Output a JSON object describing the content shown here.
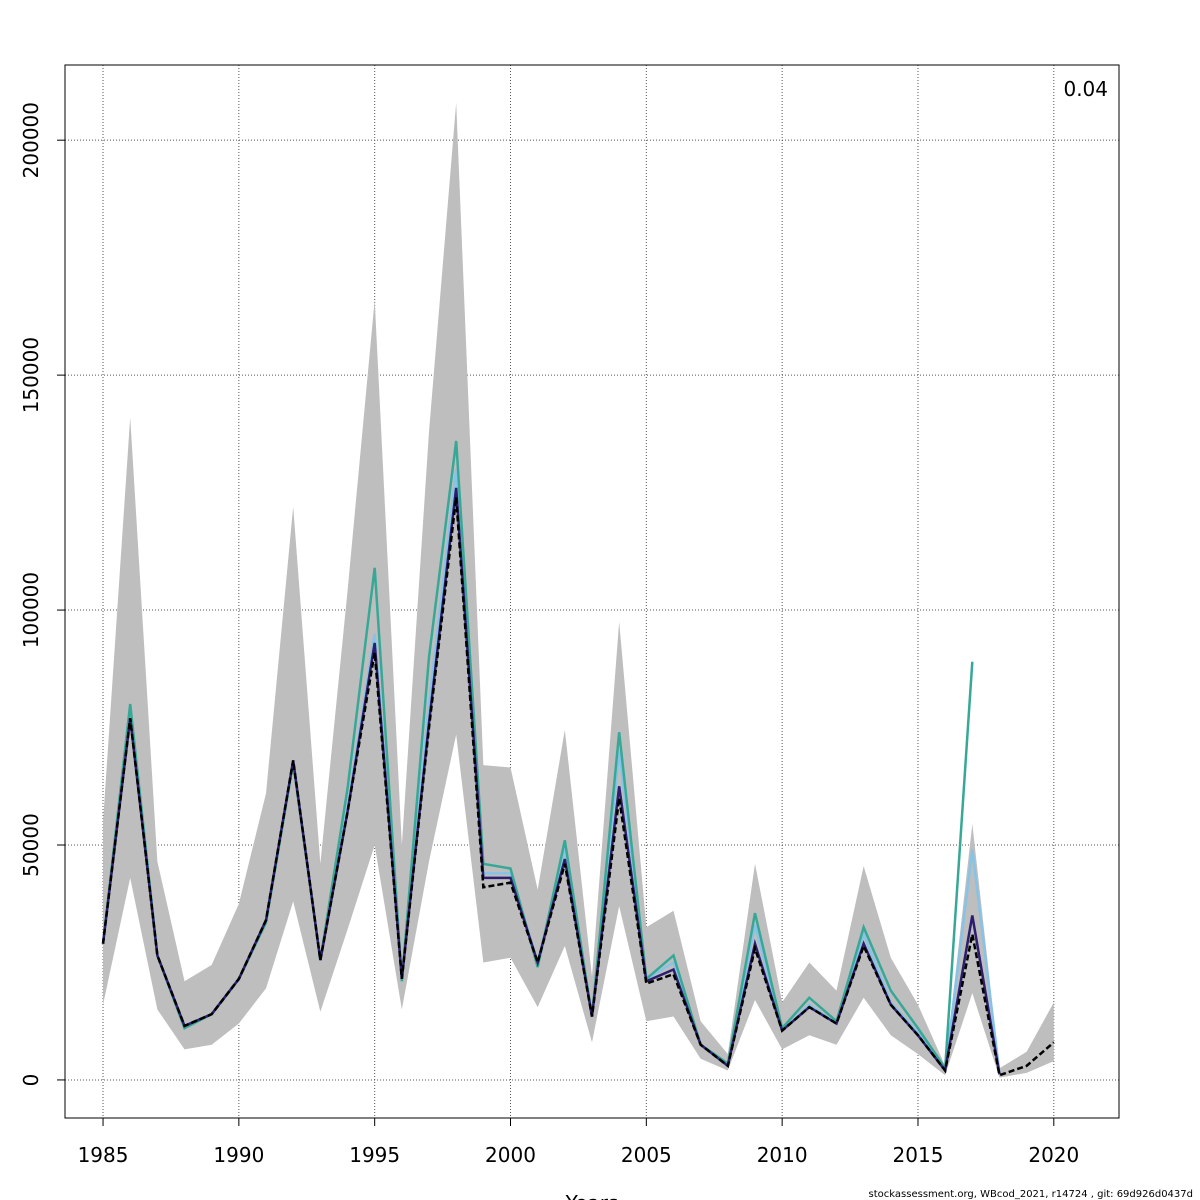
{
  "chart_data": {
    "type": "line",
    "annotation": "0.04",
    "xlabel": "Years",
    "footer": "stockassessment.org, WBcod_2021, r14724 , git: 69d926d0437d",
    "x": [
      1985,
      1986,
      1987,
      1988,
      1989,
      1990,
      1991,
      1992,
      1993,
      1994,
      1995,
      1996,
      1997,
      1998,
      1999,
      2000,
      2001,
      2002,
      2003,
      2004,
      2005,
      2006,
      2007,
      2008,
      2009,
      2010,
      2011,
      2012,
      2013,
      2014,
      2015,
      2016,
      2017,
      2018,
      2019,
      2020
    ],
    "band": {
      "color": "#bebebe",
      "upper": [
        55000,
        141000,
        46500,
        21000,
        24500,
        37500,
        61000,
        122000,
        46000,
        104000,
        166000,
        50000,
        138000,
        208000,
        67000,
        66500,
        40500,
        74500,
        22000,
        97500,
        32500,
        36000,
        12500,
        5500,
        46000,
        16500,
        25000,
        19000,
        45500,
        26000,
        16000,
        3000,
        54500,
        2500,
        6000,
        16500
      ],
      "lower": [
        16000,
        43000,
        15000,
        6500,
        7500,
        12000,
        19500,
        38000,
        14500,
        32000,
        50000,
        15000,
        46500,
        73500,
        25000,
        26000,
        15500,
        28500,
        8000,
        37000,
        12500,
        13500,
        4500,
        2000,
        17000,
        6500,
        9500,
        7500,
        17500,
        9500,
        5500,
        1000,
        18500,
        500,
        1500,
        4000
      ]
    },
    "series": [
      {
        "color": "#87c3e6",
        "values": [
          29000,
          77500,
          26500,
          11500,
          14000,
          21500,
          34000,
          68000,
          25500,
          58000,
          95000,
          21500,
          80000,
          130000,
          44000,
          44000,
          25000,
          49000,
          13500,
          70000,
          21500,
          25000,
          7500,
          3000,
          33000,
          10500,
          16000,
          12000,
          31000,
          16500,
          10000,
          2000,
          49000,
          1500,
          null,
          null
        ]
      },
      {
        "color": "#38a896",
        "values": [
          29000,
          80000,
          26500,
          11000,
          14000,
          21500,
          33500,
          67500,
          25500,
          62000,
          109000,
          21000,
          90000,
          136000,
          46000,
          45000,
          24000,
          51000,
          13500,
          74000,
          21500,
          26500,
          7500,
          3500,
          35500,
          11000,
          17500,
          12500,
          32500,
          19000,
          11000,
          2500,
          89000,
          null,
          null,
          null
        ]
      },
      {
        "color": "#2c1d6e",
        "values": [
          29000,
          77000,
          26500,
          11500,
          14000,
          21500,
          34000,
          68000,
          25500,
          57000,
          93000,
          21500,
          76000,
          126000,
          43000,
          43000,
          25000,
          47000,
          13500,
          62500,
          21000,
          23500,
          7500,
          3000,
          29000,
          10500,
          15500,
          12000,
          29000,
          16000,
          9500,
          2000,
          35000,
          1200,
          null,
          null
        ]
      },
      {
        "color": "#000000",
        "values": [
          29000,
          77000,
          26500,
          11500,
          14000,
          21500,
          34000,
          68000,
          25500,
          57000,
          91000,
          21500,
          75000,
          124000,
          41000,
          42000,
          25000,
          46000,
          13500,
          60000,
          20500,
          22500,
          7500,
          3000,
          28000,
          10500,
          15500,
          12000,
          28500,
          16000,
          9500,
          2000,
          31000,
          1000,
          3000,
          8000
        ]
      }
    ],
    "xlim": [
      1983.6,
      2022.4
    ],
    "ylim": [
      -8100,
      216000
    ],
    "xticks": [
      1985,
      1990,
      1995,
      2000,
      2005,
      2010,
      2015,
      2020
    ],
    "yticks": [
      0,
      50000,
      100000,
      150000,
      200000
    ],
    "grid": true
  }
}
